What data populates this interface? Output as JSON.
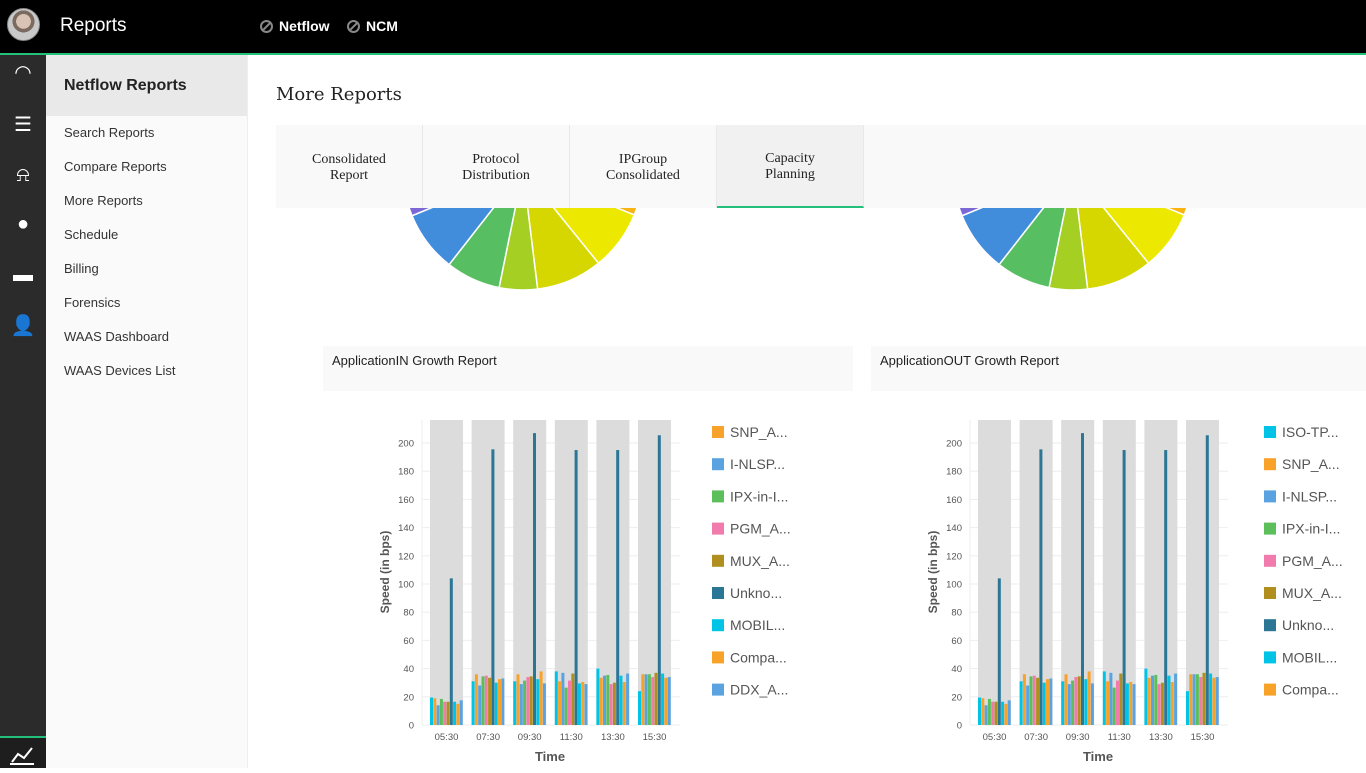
{
  "header": {
    "title": "Reports",
    "links": [
      {
        "label": "Netflow",
        "icon": "compass-icon"
      },
      {
        "label": "NCM",
        "icon": "compass-icon"
      }
    ],
    "accent": "#22c07a"
  },
  "rail": {
    "icons": [
      "dashboard-icon",
      "report-list-icon",
      "alarm-icon",
      "location-icon",
      "chat-icon",
      "user-icon",
      "chart-icon"
    ]
  },
  "sidebar": {
    "title": "Netflow Reports",
    "items": [
      {
        "label": "Search Reports"
      },
      {
        "label": "Compare Reports"
      },
      {
        "label": "More Reports"
      },
      {
        "label": "Schedule"
      },
      {
        "label": "Billing"
      },
      {
        "label": "Forensics"
      },
      {
        "label": "WAAS Dashboard"
      },
      {
        "label": "WAAS Devices List"
      }
    ]
  },
  "main": {
    "title": "More Reports",
    "tabs": [
      {
        "label": "Consolidated Report"
      },
      {
        "label": "Protocol Distribution"
      },
      {
        "label": "IPGroup Consolidated"
      },
      {
        "label": "Capacity Planning",
        "active": true
      }
    ],
    "panels": [
      {
        "title": "ApplicationIN Growth Report"
      },
      {
        "title": "ApplicationOUT Growth Report"
      }
    ]
  },
  "chart_data": [
    {
      "type": "pie",
      "note_visible": "partially hidden",
      "slice_colors": [
        "#f9b414",
        "#ede800",
        "#d6d600",
        "#a6cf24",
        "#58be62",
        "#418ddb",
        "#7b68d6"
      ]
    },
    {
      "type": "pie",
      "note_visible": "partially hidden",
      "slice_colors": [
        "#f9b414",
        "#ede800",
        "#d6d600",
        "#a6cf24",
        "#58be62",
        "#418ddb",
        "#7b68d6"
      ]
    },
    {
      "type": "bar",
      "ylabel": "Speed (in bps)",
      "xlabel": "Time",
      "ylim": [
        0,
        215
      ],
      "yticks": [
        0,
        20,
        40,
        60,
        80,
        100,
        120,
        140,
        160,
        180,
        200
      ],
      "grid": true,
      "legend_placement": "right",
      "categories": [
        "05:30",
        "07:30",
        "09:30",
        "11:30",
        "13:30",
        "15:30"
      ],
      "legend": [
        {
          "name": "SNP_A...",
          "color": "#f9a229"
        },
        {
          "name": "I-NLSP...",
          "color": "#5aa3e0"
        },
        {
          "name": "IPX-in-I...",
          "color": "#5cbf5c"
        },
        {
          "name": "PGM_A...",
          "color": "#f27bae"
        },
        {
          "name": "MUX_A...",
          "color": "#b08f1f"
        },
        {
          "name": "Unkno...",
          "color": "#2a7694"
        },
        {
          "name": "MOBIL...",
          "color": "#00c4e6"
        },
        {
          "name": "Compa...",
          "color": "#f9a229"
        },
        {
          "name": "DDX_A...",
          "color": "#5aa3e0"
        }
      ],
      "series": [
        {
          "color": "#00c4e6",
          "values": [
            19.5,
            31,
            31,
            38,
            40,
            24
          ]
        },
        {
          "name": "SNP_A...",
          "color": "#f9a229",
          "values": [
            19,
            36,
            36,
            31,
            33.5,
            36
          ]
        },
        {
          "name": "I-NLSP...",
          "color": "#5aa3e0",
          "values": [
            14,
            28,
            29,
            37,
            35,
            36
          ]
        },
        {
          "name": "IPX-in-I...",
          "color": "#5cbf5c",
          "values": [
            18.5,
            34.5,
            31.5,
            26.5,
            35.5,
            36
          ]
        },
        {
          "name": "PGM_A...",
          "color": "#f27bae",
          "values": [
            16.5,
            35,
            34,
            31.5,
            29,
            34
          ]
        },
        {
          "name": "MUX_A...",
          "color": "#b08f1f",
          "values": [
            16.5,
            33.5,
            34.5,
            36.5,
            30,
            37
          ]
        },
        {
          "name": "Unkno...",
          "color": "#2a7694",
          "values": [
            104,
            195.5,
            207,
            195,
            195,
            205.5
          ]
        },
        {
          "name": "MOBIL...",
          "color": "#00c4e6",
          "values": [
            16.5,
            30,
            32.5,
            29.5,
            35,
            36.5
          ]
        },
        {
          "name": "Compa...",
          "color": "#f9a229",
          "values": [
            15,
            32.5,
            38,
            30.5,
            30.5,
            33.5
          ]
        },
        {
          "name": "DDX_A...",
          "color": "#5aa3e0",
          "values": [
            17.5,
            33,
            29.5,
            29,
            36.5,
            34
          ]
        }
      ]
    },
    {
      "type": "bar",
      "ylabel": "Speed (in bps)",
      "xlabel": "Time",
      "ylim": [
        0,
        215
      ],
      "yticks": [
        0,
        20,
        40,
        60,
        80,
        100,
        120,
        140,
        160,
        180,
        200
      ],
      "grid": true,
      "legend_placement": "right",
      "categories": [
        "05:30",
        "07:30",
        "09:30",
        "11:30",
        "13:30",
        "15:30"
      ],
      "legend": [
        {
          "name": "ISO-TP...",
          "color": "#00c4e6"
        },
        {
          "name": "SNP_A...",
          "color": "#f9a229"
        },
        {
          "name": "I-NLSP...",
          "color": "#5aa3e0"
        },
        {
          "name": "IPX-in-I...",
          "color": "#5cbf5c"
        },
        {
          "name": "PGM_A...",
          "color": "#f27bae"
        },
        {
          "name": "MUX_A...",
          "color": "#b08f1f"
        },
        {
          "name": "Unkno...",
          "color": "#2a7694"
        },
        {
          "name": "MOBIL...",
          "color": "#00c4e6"
        },
        {
          "name": "Compa...",
          "color": "#f9a229"
        }
      ],
      "series": [
        {
          "name": "ISO-TP...",
          "color": "#00c4e6",
          "values": [
            19.5,
            31,
            31,
            38,
            40,
            24
          ]
        },
        {
          "name": "SNP_A...",
          "color": "#f9a229",
          "values": [
            19,
            36,
            36,
            31,
            33.5,
            36
          ]
        },
        {
          "name": "I-NLSP...",
          "color": "#5aa3e0",
          "values": [
            14,
            28,
            29,
            37,
            35,
            36
          ]
        },
        {
          "name": "IPX-in-I...",
          "color": "#5cbf5c",
          "values": [
            18.5,
            34.5,
            31.5,
            26.5,
            35.5,
            36
          ]
        },
        {
          "name": "PGM_A...",
          "color": "#f27bae",
          "values": [
            16.5,
            35,
            34,
            31.5,
            29,
            34
          ]
        },
        {
          "name": "MUX_A...",
          "color": "#b08f1f",
          "values": [
            16.5,
            33.5,
            34.5,
            36.5,
            30,
            37
          ]
        },
        {
          "name": "Unkno...",
          "color": "#2a7694",
          "values": [
            104,
            195.5,
            207,
            195,
            195,
            205.5
          ]
        },
        {
          "name": "MOBIL...",
          "color": "#00c4e6",
          "values": [
            16.5,
            30,
            32.5,
            29.5,
            35,
            36.5
          ]
        },
        {
          "name": "Compa...",
          "color": "#f9a229",
          "values": [
            15,
            32.5,
            38,
            30.5,
            30.5,
            33.5
          ]
        },
        {
          "color": "#5aa3e0",
          "values": [
            17.5,
            33,
            29.5,
            29,
            36.5,
            34
          ]
        }
      ]
    }
  ]
}
